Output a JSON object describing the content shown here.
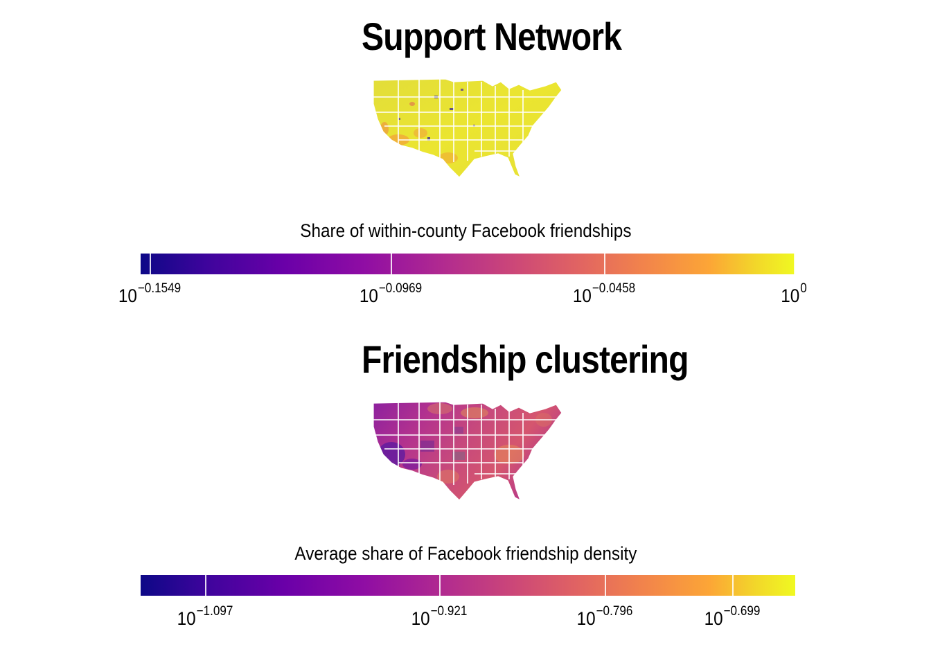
{
  "panels": [
    {
      "title": "Support Network",
      "legend": {
        "title": "Share of within-county Facebook friendships",
        "colormap": "plasma",
        "scale": "log10",
        "ticks": [
          {
            "base": "10",
            "exponent": "−0.1549",
            "value": 0.6999
          },
          {
            "base": "10",
            "exponent": "−0.0969",
            "value": 0.8
          },
          {
            "base": "10",
            "exponent": "−0.0458",
            "value": 0.9
          },
          {
            "base": "10",
            "exponent": "0",
            "value": 1.0
          }
        ]
      },
      "map": {
        "region": "contiguous United States",
        "dominant_color": "#e8e533",
        "state_border_color": "#ffffff"
      }
    },
    {
      "title": "Friendship clustering",
      "legend": {
        "title": "Average share of Facebook friendship density",
        "colormap": "plasma",
        "scale": "log10",
        "ticks": [
          {
            "base": "10",
            "exponent": "−1.097",
            "value": 0.08
          },
          {
            "base": "10",
            "exponent": "−0.921",
            "value": 0.12
          },
          {
            "base": "10",
            "exponent": "−0.796",
            "value": 0.16
          },
          {
            "base": "10",
            "exponent": "−0.699",
            "value": 0.2
          }
        ]
      },
      "map": {
        "region": "contiguous United States",
        "dominant_color": "#b5318c",
        "state_border_color": "#ffffff"
      }
    }
  ]
}
